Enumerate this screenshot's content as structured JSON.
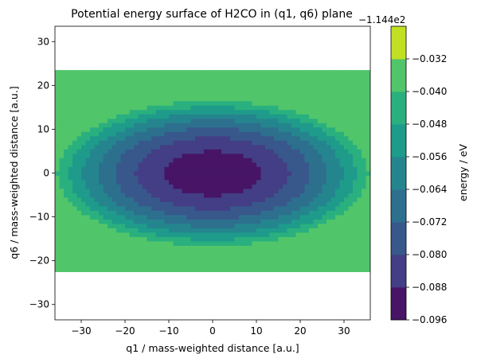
{
  "chart_data": {
    "type": "contourf",
    "title": "Potential energy surface of H2CO in (q1, q6) plane",
    "xlabel": "q1 / mass-weighted distance [a.u.]",
    "ylabel": "q6 / mass-weighted distance [a.u.]",
    "colorbar_label": "energy / eV",
    "colorbar_offset": "−1.144e2",
    "xlim": [
      -36,
      36
    ],
    "ylim": [
      -33.5,
      33.5
    ],
    "xticks": [
      -30,
      -20,
      -10,
      0,
      10,
      20,
      30
    ],
    "xtick_labels": [
      "−30",
      "−20",
      "−10",
      "0",
      "10",
      "20",
      "30"
    ],
    "yticks": [
      -30,
      -20,
      -10,
      0,
      10,
      20,
      30
    ],
    "ytick_labels": [
      "−30",
      "−20",
      "−10",
      "0",
      "10",
      "20",
      "30"
    ],
    "levels": [
      -0.096,
      -0.088,
      -0.08,
      -0.072,
      -0.064,
      -0.056,
      -0.048,
      -0.04,
      -0.032
    ],
    "level_labels": [
      "−0.096",
      "−0.088",
      "−0.080",
      "−0.072",
      "−0.064",
      "−0.056",
      "−0.048",
      "−0.040",
      "−0.032"
    ],
    "band_colors": [
      "#471466",
      "#433e85",
      "#38588c",
      "#2d708e",
      "#25858e",
      "#1e9b8a",
      "#2ab07f",
      "#51c56a",
      "#c2df23"
    ],
    "grid": false,
    "colormap": "viridis"
  }
}
